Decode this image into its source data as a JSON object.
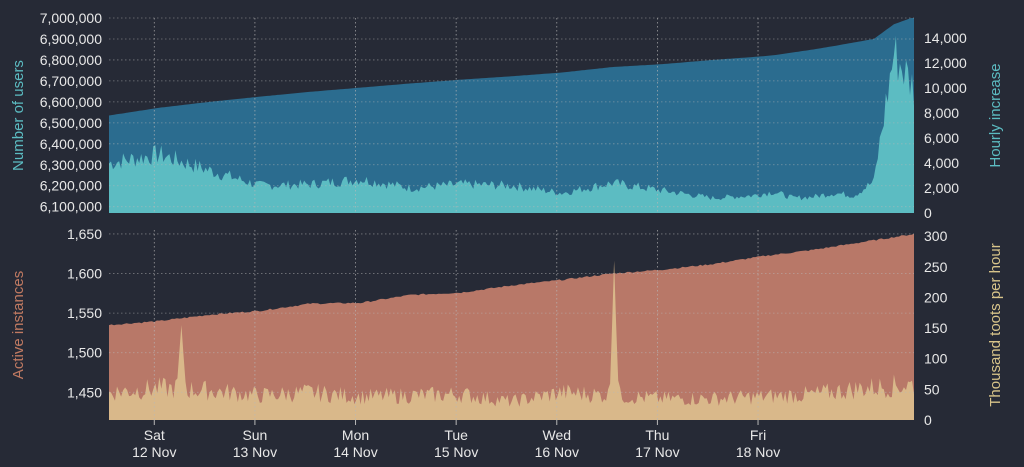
{
  "colors": {
    "background": "#262a36",
    "users_area": "#2b6c8f",
    "hourly_area": "#5cbcc2",
    "instances_area": "#b87868",
    "toots_area": "#d9b88a",
    "grid": "#b8b8b8",
    "tick_text": "#e8e8e8",
    "users_axis_label": "#5cbcc2",
    "instances_axis_label": "#c07a62",
    "toots_axis_label": "#d8c48a"
  },
  "chart_data": [
    {
      "type": "area",
      "title": "",
      "ylabel": "Number of users",
      "y2label": "Hourly increase",
      "ylim": [
        6070000,
        7000000
      ],
      "y2lim": [
        0,
        15600
      ],
      "yticks": [
        6100000,
        6200000,
        6300000,
        6400000,
        6500000,
        6600000,
        6700000,
        6800000,
        6900000,
        7000000
      ],
      "ytick_labels": [
        "6,100,000",
        "6,200,000",
        "6,300,000",
        "6,400,000",
        "6,500,000",
        "6,600,000",
        "6,700,000",
        "6,800,000",
        "6,900,000",
        "7,000,000"
      ],
      "y2ticks": [
        0,
        2000,
        4000,
        6000,
        8000,
        10000,
        12000,
        14000
      ],
      "y2tick_labels": [
        "0",
        "2,000",
        "4,000",
        "6,000",
        "8,000",
        "10,000",
        "12,000",
        "14,000"
      ],
      "x": [
        0,
        0.5,
        1,
        1.5,
        2,
        2.5,
        3,
        3.5,
        4,
        4.5,
        5,
        5.5,
        6,
        6.4,
        6.6,
        6.8,
        7,
        7.2,
        7.4,
        7.6,
        7.8,
        8
      ],
      "series": [
        {
          "axis": "left",
          "values": [
            6535000,
            6572000,
            6600000,
            6625000,
            6648000,
            6668000,
            6688000,
            6706000,
            6722000,
            6740000,
            6766000,
            6780000,
            6800000,
            6814000,
            6822000,
            6836000,
            6850000,
            6866000,
            6883000,
            6900000,
            6970000,
            7005000
          ]
        },
        {
          "axis": "right",
          "values": [
            4000,
            4700,
            3400,
            2200,
            2300,
            2700,
            2000,
            2300,
            2200,
            1600,
            2400,
            1800,
            1200,
            1400,
            1700,
            1200,
            1300,
            1600,
            1400,
            2500,
            12800,
            10000
          ]
        }
      ]
    },
    {
      "type": "area",
      "title": "",
      "ylabel": "Active instances",
      "y2label": "Thousand toots per hour",
      "ylim": [
        1415,
        1655
      ],
      "y2lim": [
        0,
        310
      ],
      "yticks": [
        1450,
        1500,
        1550,
        1600,
        1650
      ],
      "ytick_labels": [
        "1,450",
        "1,500",
        "1,550",
        "1,600",
        "1,650"
      ],
      "y2ticks": [
        0,
        50,
        100,
        150,
        200,
        250,
        300
      ],
      "y2tick_labels": [
        "0",
        "50",
        "100",
        "150",
        "200",
        "250",
        "300"
      ],
      "x": [
        0,
        0.5,
        1,
        1.5,
        2,
        2.5,
        3,
        3.5,
        4,
        4.5,
        5,
        5.5,
        6,
        6.5,
        7,
        7.5,
        8
      ],
      "series": [
        {
          "axis": "left",
          "values": [
            1535,
            1540,
            1548,
            1553,
            1562,
            1563,
            1573,
            1576,
            1585,
            1592,
            1600,
            1605,
            1612,
            1622,
            1630,
            1640,
            1650
          ]
        },
        {
          "axis": "right",
          "values": [
            45,
            52,
            48,
            40,
            45,
            38,
            40,
            42,
            30,
            45,
            40,
            35,
            35,
            38,
            42,
            52,
            58
          ]
        }
      ],
      "spikes": [
        {
          "axis": "right",
          "x": 0.72,
          "value": 155
        },
        {
          "axis": "right",
          "x": 5.02,
          "value": 260
        }
      ]
    }
  ],
  "x_axis": {
    "ticks": [
      {
        "x": 0.45,
        "day": "Sat",
        "date": "12 Nov"
      },
      {
        "x": 1.45,
        "day": "Sun",
        "date": "13 Nov"
      },
      {
        "x": 2.45,
        "day": "Mon",
        "date": "14 Nov"
      },
      {
        "x": 3.45,
        "day": "Tue",
        "date": "15 Nov"
      },
      {
        "x": 4.45,
        "day": "Wed",
        "date": "16 Nov"
      },
      {
        "x": 5.45,
        "day": "Thu",
        "date": "17 Nov"
      },
      {
        "x": 6.45,
        "day": "Fri",
        "date": "18 Nov"
      }
    ]
  }
}
